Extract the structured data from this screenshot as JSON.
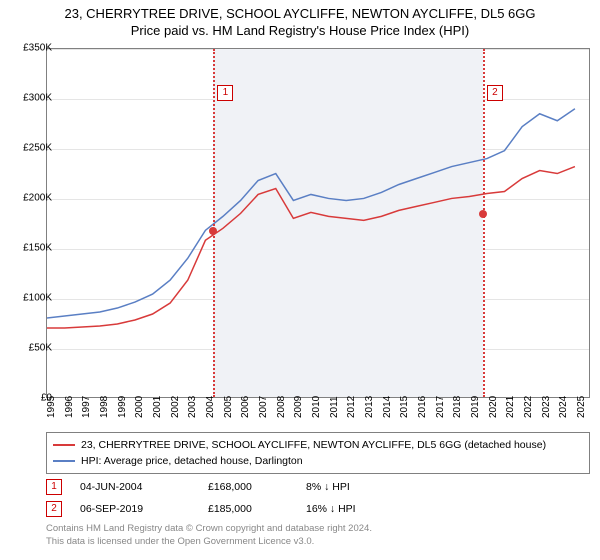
{
  "title_line1": "23, CHERRYTREE DRIVE, SCHOOL AYCLIFFE, NEWTON AYCLIFFE, DL5 6GG",
  "title_line2": "Price paid vs. HM Land Registry's House Price Index (HPI)",
  "chart": {
    "type": "line",
    "background_color": "#ffffff",
    "shaded_band_color": "#f0f2f6",
    "grid_color": "#e5e5e5",
    "border_color": "#808080",
    "x_years": [
      1995,
      1996,
      1997,
      1998,
      1999,
      2000,
      2001,
      2002,
      2003,
      2004,
      2005,
      2006,
      2007,
      2008,
      2009,
      2010,
      2011,
      2012,
      2013,
      2014,
      2015,
      2016,
      2017,
      2018,
      2019,
      2020,
      2021,
      2022,
      2023,
      2024,
      2025
    ],
    "xlim": [
      1995,
      2025.8
    ],
    "ylim": [
      0,
      350
    ],
    "ytick_step": 50,
    "yticks": [
      "£0",
      "£50K",
      "£100K",
      "£150K",
      "£200K",
      "£250K",
      "£300K",
      "£350K"
    ],
    "label_fontsize": 10,
    "series": [
      {
        "name": "23, CHERRYTREE DRIVE, SCHOOL AYCLIFFE, NEWTON AYCLIFFE, DL5 6GG (detached house)",
        "color": "#d83a3a",
        "line_width": 1.5,
        "values_k": [
          70,
          70,
          71,
          72,
          74,
          78,
          84,
          95,
          118,
          158,
          170,
          185,
          204,
          210,
          180,
          186,
          182,
          180,
          178,
          182,
          188,
          192,
          196,
          200,
          202,
          205,
          207,
          220,
          228,
          225,
          232
        ]
      },
      {
        "name": "HPI: Average price, detached house, Darlington",
        "color": "#5a7fc4",
        "line_width": 1.5,
        "values_k": [
          80,
          82,
          84,
          86,
          90,
          96,
          104,
          118,
          140,
          168,
          182,
          198,
          218,
          225,
          198,
          204,
          200,
          198,
          200,
          206,
          214,
          220,
          226,
          232,
          236,
          240,
          248,
          272,
          285,
          278,
          290
        ]
      }
    ],
    "sale_markers": [
      {
        "num": "1",
        "year": 2004.42,
        "price_k": 168,
        "vline_color": "#d83a3a"
      },
      {
        "num": "2",
        "year": 2019.68,
        "price_k": 185,
        "vline_color": "#d83a3a"
      }
    ],
    "shaded_start_year": 2004.42,
    "shaded_end_year": 2019.68
  },
  "legend": {
    "items": [
      {
        "color": "#d83a3a",
        "label": "23, CHERRYTREE DRIVE, SCHOOL AYCLIFFE, NEWTON AYCLIFFE, DL5 6GG (detached house)"
      },
      {
        "color": "#5a7fc4",
        "label": "HPI: Average price, detached house, Darlington"
      }
    ]
  },
  "sales": [
    {
      "num": "1",
      "date": "04-JUN-2004",
      "price": "£168,000",
      "diff": "8% ↓ HPI"
    },
    {
      "num": "2",
      "date": "06-SEP-2019",
      "price": "£185,000",
      "diff": "16% ↓ HPI"
    }
  ],
  "footer_line1": "Contains HM Land Registry data © Crown copyright and database right 2024.",
  "footer_line2": "This data is licensed under the Open Government Licence v3.0."
}
